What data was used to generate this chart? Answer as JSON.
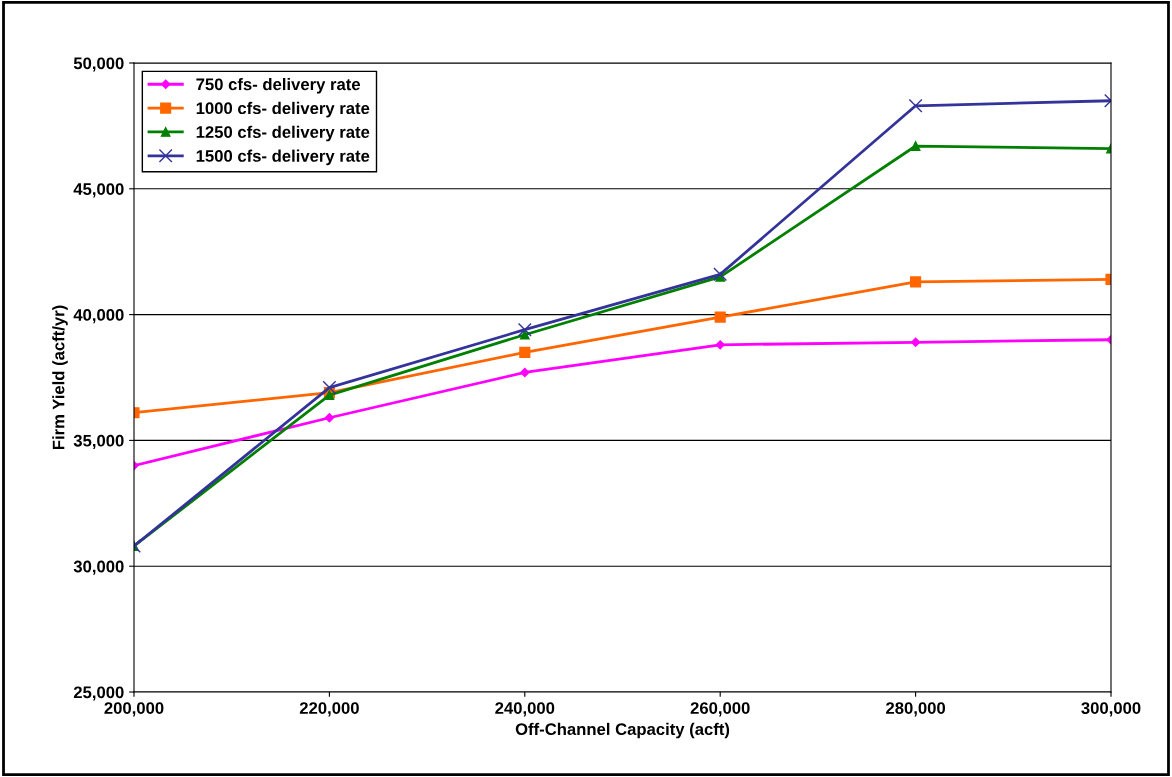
{
  "chart_data": {
    "type": "line",
    "xlabel": "Off-Channel Capacity (acft)",
    "ylabel": "Firm Yield (acft/yr)",
    "x": [
      200000,
      220000,
      240000,
      260000,
      280000,
      300000
    ],
    "series": [
      {
        "name": "750 cfs- delivery rate",
        "color": "#ff00ff",
        "marker": "diamond",
        "values": [
          34000,
          35900,
          37700,
          38800,
          38900,
          39000
        ]
      },
      {
        "name": "1000 cfs- delivery rate",
        "color": "#ff6600",
        "marker": "square",
        "values": [
          36100,
          36900,
          38500,
          39900,
          41300,
          41400
        ]
      },
      {
        "name": "1250 cfs- delivery rate",
        "color": "#008000",
        "marker": "triangle",
        "values": [
          30800,
          36800,
          39200,
          41500,
          46700,
          46600
        ]
      },
      {
        "name": "1500 cfs- delivery rate",
        "color": "#333399",
        "marker": "cross",
        "values": [
          30800,
          37100,
          39400,
          41600,
          48300,
          48500
        ]
      }
    ],
    "xlim": [
      200000,
      300000
    ],
    "ylim": [
      25000,
      50000
    ],
    "xticks": [
      {
        "value": 200000,
        "label": "200,000"
      },
      {
        "value": 220000,
        "label": "220,000"
      },
      {
        "value": 240000,
        "label": "240,000"
      },
      {
        "value": 260000,
        "label": "260,000"
      },
      {
        "value": 280000,
        "label": "280,000"
      },
      {
        "value": 300000,
        "label": "300,000"
      }
    ],
    "yticks": [
      {
        "value": 25000,
        "label": "25,000"
      },
      {
        "value": 30000,
        "label": "30,000"
      },
      {
        "value": 35000,
        "label": "35,000"
      },
      {
        "value": 40000,
        "label": "40,000"
      },
      {
        "value": 45000,
        "label": "45,000"
      },
      {
        "value": 50000,
        "label": "50,000"
      }
    ],
    "grid": "y",
    "legend": "top left",
    "line_style": "solid"
  }
}
